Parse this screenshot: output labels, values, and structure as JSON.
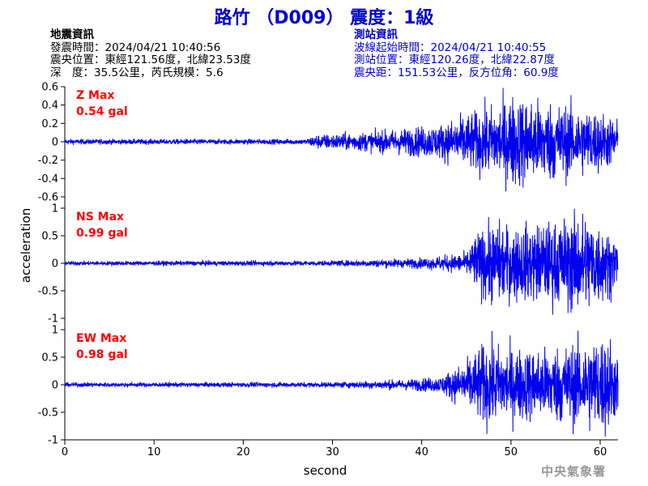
{
  "title": "路竹 （D009） 震度：1級",
  "event_info": {
    "heading": "地震資訊",
    "origin_time": "發震時間：2024/04/21 10:40:56",
    "epicenter": "震央位置：東經121.56度，北緯23.53度",
    "depth_magnitude": "深　度：35.5公里，芮氏規模：5.6"
  },
  "station_info": {
    "heading": "測站資訊",
    "wave_start": "波線起始時間：2024/04/21 10:40:55",
    "location": "測站位置：東經120.26度，北緯22.87度",
    "distance": "震央距：151.53公里，反方位角：60.9度"
  },
  "agency": "中央氣象署",
  "colors": {
    "trace": "#0000ee",
    "label": "#ff0000",
    "title": "#0000cc"
  },
  "chart_data": {
    "type": "line",
    "xlabel": "second",
    "ylabel": "acceleration",
    "xlim": [
      0,
      62
    ],
    "xticks": [
      0,
      10,
      20,
      30,
      40,
      50,
      60
    ],
    "panels": [
      {
        "component": "Z",
        "label_line1": "Z Max",
        "label_line2": "0.54 gal",
        "peak": 0.54,
        "ylim": [
          -0.6,
          0.6
        ],
        "yticks": [
          0.6,
          0.4,
          0.2,
          0,
          -0.2,
          -0.4,
          -0.6
        ],
        "envelope": [
          [
            0,
            0.03
          ],
          [
            27,
            0.03
          ],
          [
            28,
            0.08
          ],
          [
            35,
            0.12
          ],
          [
            42,
            0.2
          ],
          [
            46,
            0.35
          ],
          [
            49,
            0.45
          ],
          [
            50,
            0.54
          ],
          [
            55,
            0.45
          ],
          [
            60,
            0.35
          ],
          [
            62,
            0.25
          ]
        ]
      },
      {
        "component": "NS",
        "label_line1": "NS Max",
        "label_line2": "0.99 gal",
        "peak": 0.99,
        "ylim": [
          -1,
          1
        ],
        "yticks": [
          1,
          0.5,
          0,
          -0.5,
          -1
        ],
        "envelope": [
          [
            0,
            0.04
          ],
          [
            30,
            0.05
          ],
          [
            40,
            0.1
          ],
          [
            45,
            0.2
          ],
          [
            46,
            0.55
          ],
          [
            48,
            0.8
          ],
          [
            50,
            0.7
          ],
          [
            55,
            0.8
          ],
          [
            58,
            0.99
          ],
          [
            60,
            0.8
          ],
          [
            62,
            0.45
          ]
        ]
      },
      {
        "component": "EW",
        "label_line1": "EW Max",
        "label_line2": "0.98 gal",
        "peak": 0.98,
        "ylim": [
          -1,
          1
        ],
        "yticks": [
          1,
          0.5,
          0,
          -0.5,
          -1
        ],
        "envelope": [
          [
            0,
            0.04
          ],
          [
            30,
            0.05
          ],
          [
            38,
            0.1
          ],
          [
            42,
            0.15
          ],
          [
            45,
            0.45
          ],
          [
            47,
            0.8
          ],
          [
            50,
            0.7
          ],
          [
            54,
            0.7
          ],
          [
            57,
            0.8
          ],
          [
            61,
            0.98
          ],
          [
            62,
            0.5
          ]
        ]
      }
    ]
  }
}
